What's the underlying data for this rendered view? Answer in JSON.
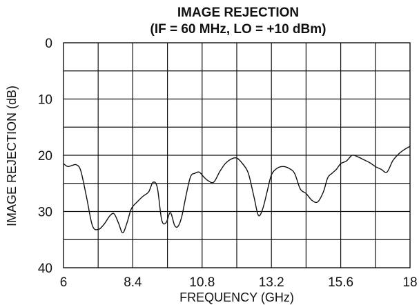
{
  "chart_data": {
    "type": "line",
    "title": "IMAGE REJECTION",
    "subtitle": "(IF = 60 MHz, LO = +10 dBm)",
    "xlabel": "FREQUENCY (GHz)",
    "ylabel": "IMAGE REJECTION (dB)",
    "xlim": [
      6,
      18
    ],
    "ylim": [
      0,
      40
    ],
    "y_inverted": true,
    "grid": true,
    "x_ticks": [
      "6",
      "8.4",
      "10.8",
      "13.2",
      "15.6",
      "18"
    ],
    "x_tick_values": [
      6,
      8.4,
      10.8,
      13.2,
      15.6,
      18
    ],
    "y_ticks": [
      "0",
      "10",
      "20",
      "30",
      "40"
    ],
    "y_tick_values": [
      0,
      10,
      20,
      30,
      40
    ],
    "series": [
      {
        "x": [
          6.0,
          6.15,
          6.3,
          6.45,
          6.6,
          6.8,
          7.0,
          7.2,
          7.4,
          7.6,
          7.75,
          7.9,
          8.05,
          8.2,
          8.35,
          8.55,
          8.75,
          8.95,
          9.1,
          9.25,
          9.4,
          9.55,
          9.7,
          9.85,
          9.97,
          10.1,
          10.25,
          10.4,
          10.55,
          10.7,
          10.85,
          11.0,
          11.2,
          11.4,
          11.6,
          11.8,
          12.0,
          12.2,
          12.4,
          12.6,
          12.75,
          12.9,
          13.05,
          13.2,
          13.4,
          13.6,
          13.8,
          14.0,
          14.2,
          14.4,
          14.6,
          14.8,
          15.0,
          15.15,
          15.3,
          15.45,
          15.6,
          15.8,
          16.0,
          16.2,
          16.4,
          16.6,
          16.8,
          17.0,
          17.2,
          17.4,
          17.6,
          17.8,
          18.0
        ],
        "values": [
          21.5,
          22.0,
          21.8,
          21.7,
          22.8,
          27.5,
          32.5,
          33.2,
          32.3,
          30.8,
          30.4,
          32.0,
          33.8,
          32.0,
          29.5,
          28.3,
          27.3,
          26.5,
          24.8,
          25.8,
          31.5,
          32.0,
          30.2,
          32.5,
          32.6,
          30.8,
          27.0,
          23.8,
          23.2,
          23.0,
          23.8,
          24.5,
          24.8,
          23.0,
          21.5,
          20.7,
          20.5,
          21.5,
          23.2,
          27.5,
          30.7,
          29.5,
          26.5,
          23.5,
          22.3,
          22.0,
          22.3,
          23.2,
          26.0,
          26.8,
          28.0,
          28.3,
          26.5,
          24.0,
          23.2,
          22.5,
          21.5,
          21.0,
          20.0,
          20.3,
          20.8,
          21.3,
          22.0,
          22.5,
          23.0,
          21.0,
          19.8,
          19.0,
          18.4
        ]
      }
    ]
  }
}
